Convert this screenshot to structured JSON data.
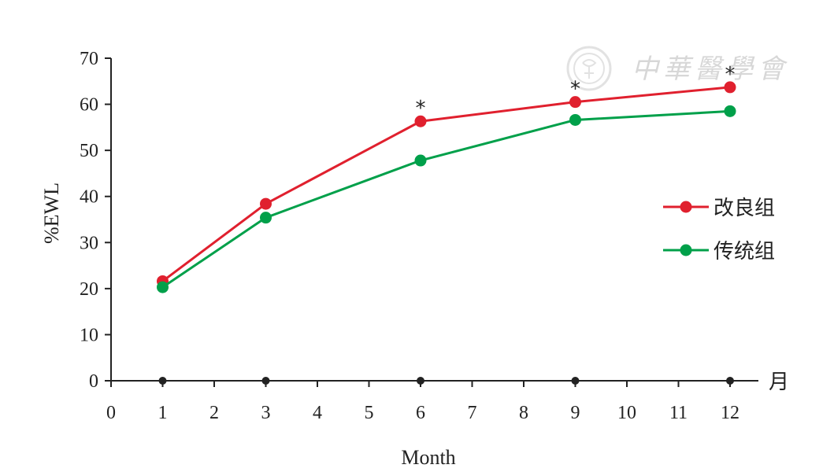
{
  "chart_data": {
    "type": "line",
    "ylabel": "%EWL",
    "xlabel": "Month",
    "x_axis_unit": "月",
    "xlim": [
      0,
      12
    ],
    "ylim": [
      0,
      70
    ],
    "x_ticks": [
      0,
      1,
      2,
      3,
      4,
      5,
      6,
      7,
      8,
      9,
      10,
      11,
      12
    ],
    "y_ticks": [
      0,
      10,
      20,
      30,
      40,
      50,
      60,
      70
    ],
    "x": [
      1,
      3,
      6,
      9,
      12
    ],
    "series": [
      {
        "name": "改良组",
        "color": "#e0202e",
        "values": [
          21.6,
          38.4,
          56.3,
          60.5,
          63.7
        ]
      },
      {
        "name": "传统组",
        "color": "#00a04a",
        "values": [
          20.3,
          35.4,
          47.8,
          56.6,
          58.5
        ]
      }
    ],
    "baseline_markers_x": [
      1,
      3,
      6,
      9,
      12
    ],
    "significance": {
      "symbol": "*",
      "x": [
        6,
        9,
        12
      ]
    },
    "grid": false,
    "legend_position": "right"
  },
  "watermark": {
    "text": "中華醫學會"
  }
}
